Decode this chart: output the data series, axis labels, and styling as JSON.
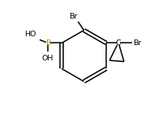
{
  "bg_color": "#ffffff",
  "line_color": "#000000",
  "text_color": "#000000",
  "B_color": "#b8860b",
  "label_Br1": "Br",
  "label_Br2": "Br",
  "label_B": "B",
  "label_HO": "HO",
  "label_OH": "OH",
  "label_C": "C",
  "figsize": [
    2.07,
    1.49
  ],
  "dpi": 100
}
